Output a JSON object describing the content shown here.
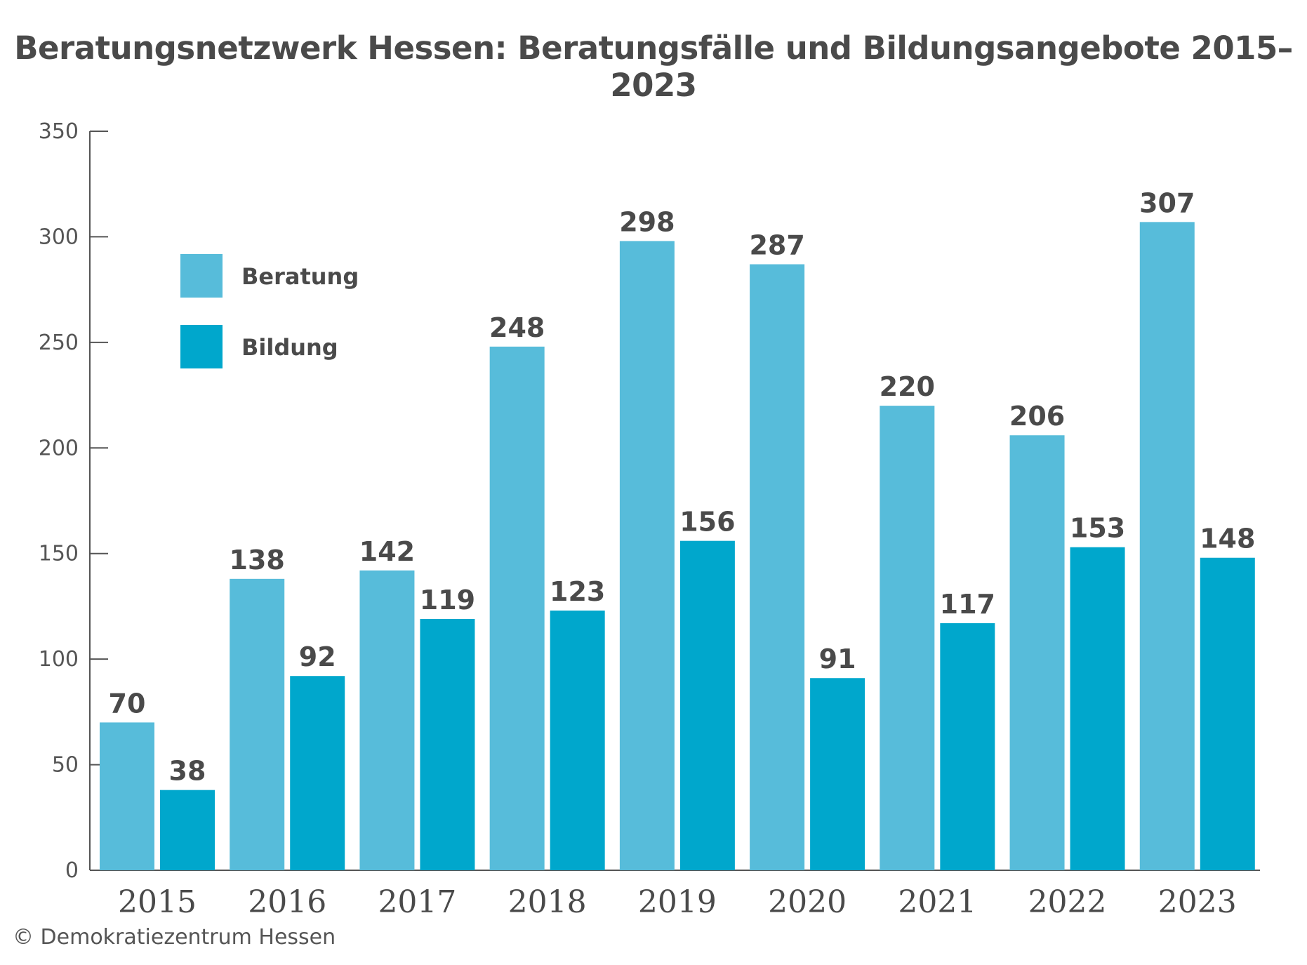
{
  "chart_data": {
    "type": "bar",
    "title": "Beratungsnetzwerk Hessen: Beratungsfälle und Bildungsangebote 2015–2023",
    "xlabel": "",
    "ylabel": "",
    "categories": [
      "2015",
      "2016",
      "2017",
      "2018",
      "2019",
      "2020",
      "2021",
      "2022",
      "2023"
    ],
    "series": [
      {
        "name": "Beratung",
        "color": "#57bcda",
        "values": [
          70,
          138,
          142,
          248,
          298,
          287,
          220,
          206,
          307
        ]
      },
      {
        "name": "Bildung",
        "color": "#00a7cc",
        "values": [
          38,
          92,
          119,
          123,
          156,
          91,
          117,
          153,
          148
        ]
      }
    ],
    "ylim": [
      0,
      350
    ],
    "yticks": [
      0,
      50,
      100,
      150,
      200,
      250,
      300,
      350
    ],
    "grid": false,
    "legend_position": "top-left"
  },
  "footer": {
    "copyright": "© Demokratiezentrum Hessen"
  }
}
